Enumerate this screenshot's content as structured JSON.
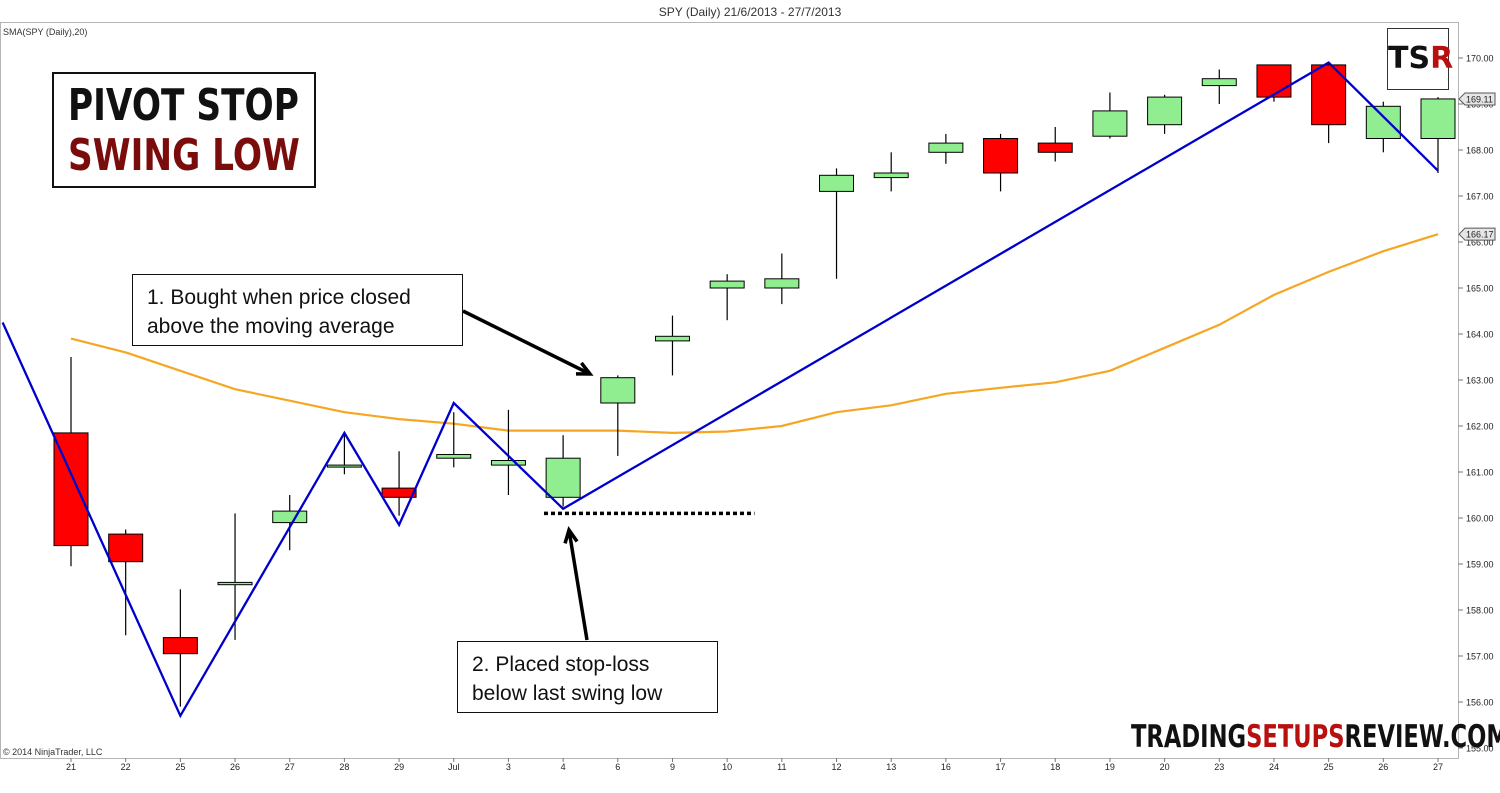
{
  "chart_data": {
    "type": "candlestick",
    "title": "SPY (Daily)  21/6/2013 - 27/7/2013",
    "indicator_label": "SMA(SPY (Daily),20)",
    "copyright": "© 2014 NinjaTrader, LLC",
    "ylim": [
      154.75,
      170.4
    ],
    "y_ticks": [
      "155.00",
      "156.00",
      "157.00",
      "158.00",
      "159.00",
      "160.00",
      "161.00",
      "162.00",
      "163.00",
      "164.00",
      "165.00",
      "166.00",
      "167.00",
      "168.00",
      "169.00",
      "170.00"
    ],
    "x_labels": [
      "21",
      "22",
      "25",
      "26",
      "27",
      "28",
      "29",
      "Jul",
      "3",
      "4",
      "6",
      "9",
      "10",
      "11",
      "12",
      "13",
      "16",
      "17",
      "18",
      "19",
      "20",
      "23",
      "24",
      "25",
      "26",
      "27"
    ],
    "candles": [
      {
        "o": 161.85,
        "h": 163.5,
        "l": 158.95,
        "c": 159.4
      },
      {
        "o": 159.65,
        "h": 159.75,
        "l": 157.45,
        "c": 159.05
      },
      {
        "o": 157.4,
        "h": 158.45,
        "l": 155.9,
        "c": 157.05
      },
      {
        "o": 158.55,
        "h": 160.1,
        "l": 157.35,
        "c": 158.6
      },
      {
        "o": 159.9,
        "h": 160.5,
        "l": 159.3,
        "c": 160.15
      },
      {
        "o": 161.15,
        "h": 161.85,
        "l": 160.95,
        "c": 161.15
      },
      {
        "o": 160.65,
        "h": 161.45,
        "l": 160.05,
        "c": 160.45
      },
      {
        "o": 161.3,
        "h": 162.3,
        "l": 161.1,
        "c": 161.38
      },
      {
        "o": 161.15,
        "h": 162.35,
        "l": 160.5,
        "c": 161.25
      },
      {
        "o": 160.45,
        "h": 161.8,
        "l": 160.25,
        "c": 161.3
      },
      {
        "o": 162.5,
        "h": 163.1,
        "l": 161.35,
        "c": 163.05
      },
      {
        "o": 163.85,
        "h": 164.4,
        "l": 163.1,
        "c": 163.95
      },
      {
        "o": 165.0,
        "h": 165.3,
        "l": 164.3,
        "c": 165.15
      },
      {
        "o": 165.0,
        "h": 165.75,
        "l": 164.65,
        "c": 165.2
      },
      {
        "o": 167.1,
        "h": 167.6,
        "l": 165.2,
        "c": 167.45
      },
      {
        "o": 167.4,
        "h": 167.95,
        "l": 167.1,
        "c": 167.5
      },
      {
        "o": 167.95,
        "h": 168.35,
        "l": 167.7,
        "c": 168.15
      },
      {
        "o": 168.25,
        "h": 168.35,
        "l": 167.1,
        "c": 167.5
      },
      {
        "o": 168.15,
        "h": 168.5,
        "l": 167.75,
        "c": 167.95
      },
      {
        "o": 168.3,
        "h": 169.25,
        "l": 168.25,
        "c": 168.85
      },
      {
        "o": 168.55,
        "h": 169.2,
        "l": 168.35,
        "c": 169.15
      },
      {
        "o": 169.4,
        "h": 169.75,
        "l": 169.0,
        "c": 169.55
      },
      {
        "o": 169.85,
        "h": 169.85,
        "l": 169.05,
        "c": 169.15
      },
      {
        "o": 169.85,
        "h": 169.9,
        "l": 168.15,
        "c": 168.55
      },
      {
        "o": 168.25,
        "h": 169.05,
        "l": 167.95,
        "c": 168.95
      },
      {
        "o": 168.25,
        "h": 169.15,
        "l": 167.5,
        "c": 169.11
      }
    ],
    "sma": [
      {
        "x": 0,
        "y": 163.9
      },
      {
        "x": 1,
        "y": 163.6
      },
      {
        "x": 2,
        "y": 163.2
      },
      {
        "x": 3,
        "y": 162.8
      },
      {
        "x": 4,
        "y": 162.55
      },
      {
        "x": 5,
        "y": 162.3
      },
      {
        "x": 6,
        "y": 162.15
      },
      {
        "x": 7,
        "y": 162.05
      },
      {
        "x": 8,
        "y": 161.9
      },
      {
        "x": 9,
        "y": 161.9
      },
      {
        "x": 10,
        "y": 161.9
      },
      {
        "x": 11,
        "y": 161.85
      },
      {
        "x": 12,
        "y": 161.88
      },
      {
        "x": 13,
        "y": 162.0
      },
      {
        "x": 14,
        "y": 162.3
      },
      {
        "x": 15,
        "y": 162.45
      },
      {
        "x": 16,
        "y": 162.7
      },
      {
        "x": 17,
        "y": 162.83
      },
      {
        "x": 18,
        "y": 162.95
      },
      {
        "x": 19,
        "y": 163.2
      },
      {
        "x": 20,
        "y": 163.7
      },
      {
        "x": 21,
        "y": 164.2
      },
      {
        "x": 22,
        "y": 164.85
      },
      {
        "x": 23,
        "y": 165.35
      },
      {
        "x": 24,
        "y": 165.8
      },
      {
        "x": 25,
        "y": 166.17
      }
    ],
    "zigzag": [
      {
        "x": -1.25,
        "y": 164.25
      },
      {
        "x": 2,
        "y": 155.7
      },
      {
        "x": 5,
        "y": 161.85
      },
      {
        "x": 6,
        "y": 159.85
      },
      {
        "x": 7,
        "y": 162.5
      },
      {
        "x": 9,
        "y": 160.2
      },
      {
        "x": 23,
        "y": 169.9
      },
      {
        "x": 25,
        "y": 167.55
      }
    ],
    "stop_level": 160.1,
    "stop_x_range": [
      8.65,
      12.5
    ],
    "price_markers": [
      "169.11",
      "166.17"
    ],
    "price_marker_values": [
      169.11,
      166.17
    ],
    "colors": {
      "up": "#90ee90",
      "down": "#ff0000",
      "sma": "#f5a623",
      "zigzag": "#0000cc",
      "stop": "#000000"
    }
  },
  "annotations": {
    "title_line1": "PIVOT STOP",
    "title_line2": "SWING LOW",
    "note1_line1": "1. Bought when price closed",
    "note1_line2": "above the moving average",
    "note2_line1": "2. Placed stop-loss",
    "note2_line2": "below last swing low",
    "logo_a": "TS",
    "logo_b": "R",
    "watermark_a": "TRADING",
    "watermark_b": "SETUPS",
    "watermark_c": "REVIEW.COM"
  }
}
